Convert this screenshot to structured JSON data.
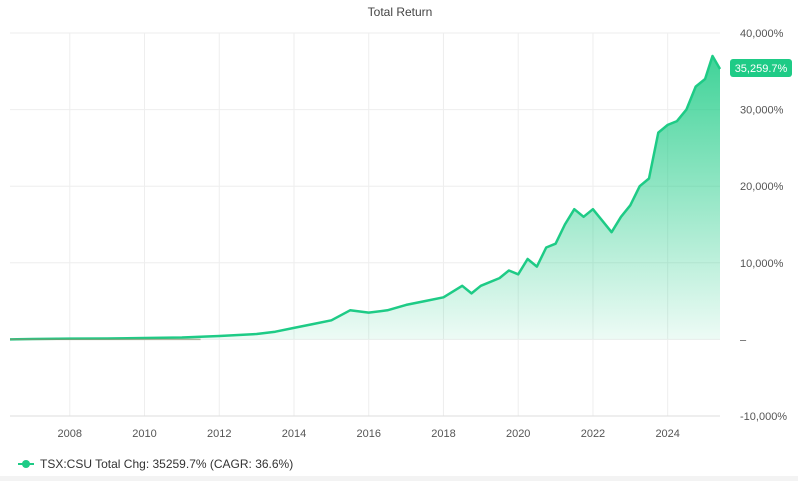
{
  "colors": {
    "line": "#1ecb86",
    "area": "#1ecb86",
    "grid": "#eeeeee",
    "badge": "#1ecb86",
    "badge_text": "#ffffff"
  },
  "legend": {
    "text": "TSX:CSU Total Chg: 35259.7% (CAGR: 36.6%)"
  },
  "chart_data": {
    "type": "area",
    "title": "Total Return",
    "xlabel": "",
    "ylabel": "",
    "x_ticks": [
      "2008",
      "2010",
      "2012",
      "2014",
      "2016",
      "2018",
      "2020",
      "2022",
      "2024"
    ],
    "y_ticks": [
      "40,000%",
      "30,000%",
      "20,000%",
      "10,000%",
      "–",
      "-10,000%"
    ],
    "ylim": [
      -10000,
      40000
    ],
    "xlim": [
      2006.4,
      2025.4
    ],
    "grid": true,
    "last_value_label": "35,259.7%",
    "series": [
      {
        "name": "TSX:CSU",
        "x": [
          2006.4,
          2007.0,
          2008.0,
          2009.0,
          2010.0,
          2011.0,
          2011.5,
          2012.0,
          2013.0,
          2013.5,
          2014.0,
          2014.5,
          2015.0,
          2015.5,
          2016.0,
          2016.5,
          2017.0,
          2017.5,
          2018.0,
          2018.5,
          2018.75,
          2019.0,
          2019.5,
          2019.75,
          2020.0,
          2020.25,
          2020.5,
          2020.75,
          2021.0,
          2021.25,
          2021.5,
          2021.75,
          2022.0,
          2022.25,
          2022.5,
          2022.75,
          2023.0,
          2023.25,
          2023.5,
          2023.75,
          2024.0,
          2024.25,
          2024.5,
          2024.75,
          2025.0,
          2025.2,
          2025.4
        ],
        "y": [
          0,
          50,
          100,
          120,
          180,
          250,
          350,
          450,
          700,
          1000,
          1500,
          2000,
          2500,
          3800,
          3500,
          3800,
          4500,
          5000,
          5500,
          7000,
          6000,
          7000,
          8000,
          9000,
          8500,
          10500,
          9500,
          12000,
          12500,
          15000,
          17000,
          16000,
          17000,
          15500,
          14000,
          16000,
          17500,
          20000,
          21000,
          27000,
          28000,
          28500,
          30000,
          33000,
          34000,
          37000,
          35300
        ]
      }
    ]
  }
}
